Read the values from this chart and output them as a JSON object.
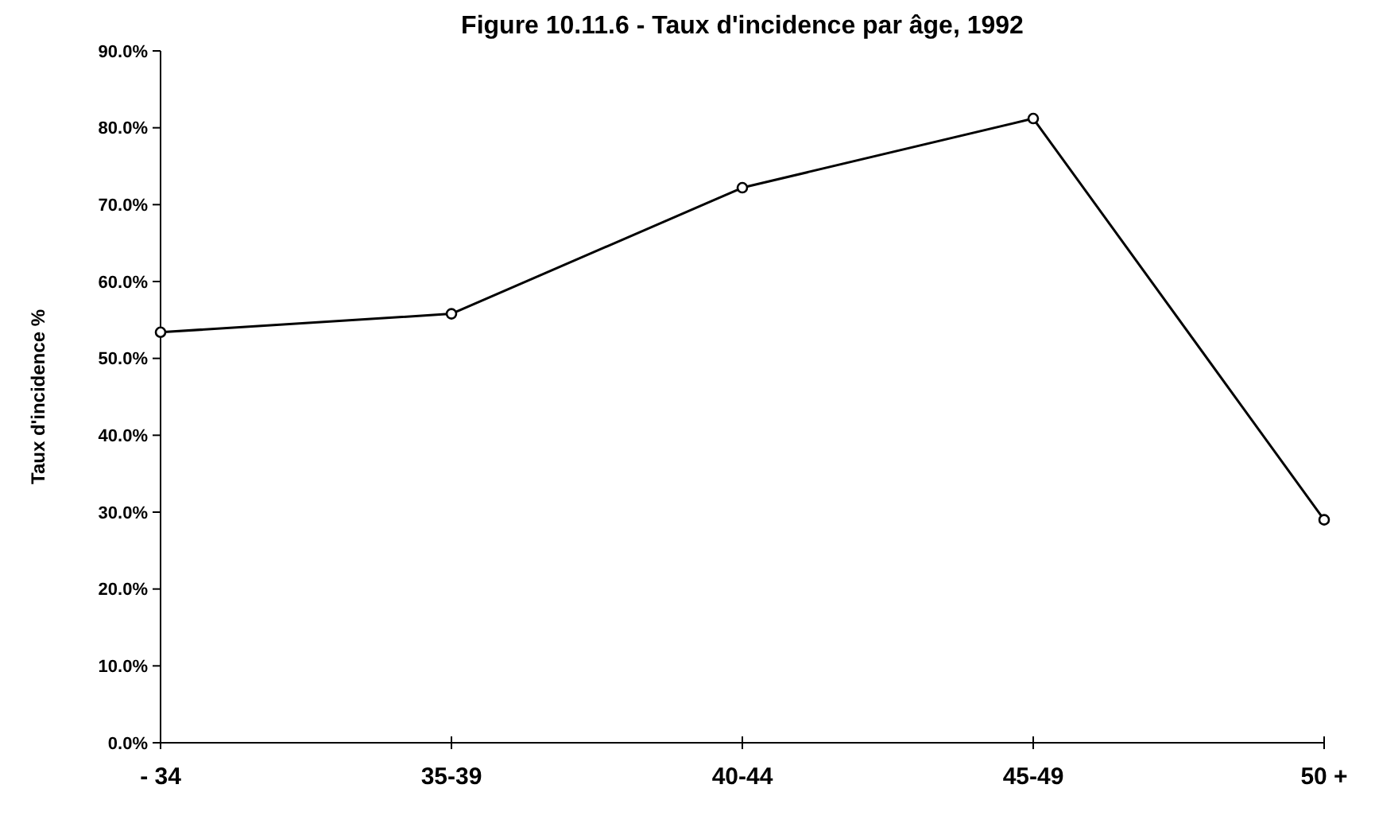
{
  "chart_data": {
    "type": "line",
    "title": "Figure 10.11.6 - Taux d'incidence par âge, 1992",
    "ylabel": "Taux d'incidence %",
    "categories": [
      "- 34",
      "35-39",
      "40-44",
      "45-49",
      "50 +"
    ],
    "series": [
      {
        "color": "#000000",
        "values": [
          53.4,
          55.8,
          72.2,
          81.2,
          29.0
        ]
      }
    ],
    "ylim": [
      0,
      90
    ],
    "yticks": [
      {
        "value": 0,
        "label": "0.0%"
      },
      {
        "value": 10,
        "label": "10.0%"
      },
      {
        "value": 20,
        "label": "20.0%"
      },
      {
        "value": 30,
        "label": "30.0%"
      },
      {
        "value": 40,
        "label": "40.0%"
      },
      {
        "value": 50,
        "label": "50.0%"
      },
      {
        "value": 60,
        "label": "60.0%"
      },
      {
        "value": 70,
        "label": "70.0%"
      },
      {
        "value": 80,
        "label": "80.0%"
      },
      {
        "value": 90,
        "label": "90.0%"
      }
    ],
    "grid": false,
    "marker": "circle",
    "line_style": "solid"
  }
}
